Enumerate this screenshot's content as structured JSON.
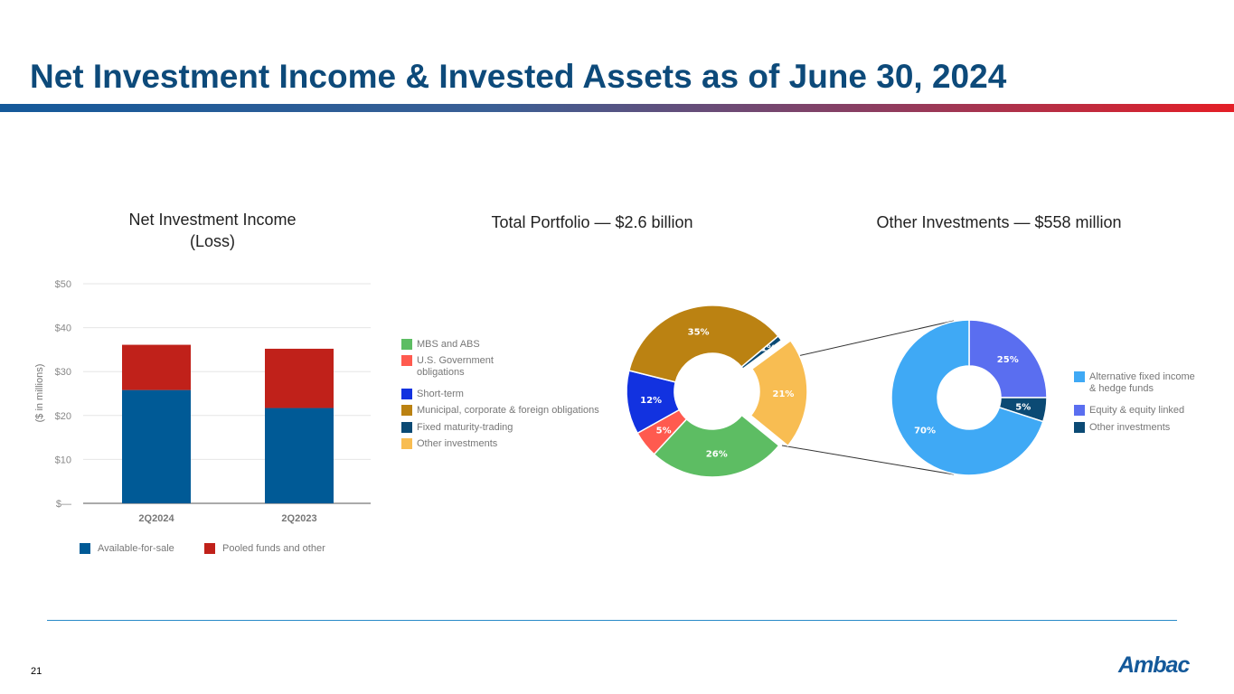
{
  "title": "Net Investment Income & Invested Assets as of June 30, 2024",
  "page_number": "21",
  "logo": "Ambac",
  "colors": {
    "title": "#0d4a7a",
    "afs": "#005a96",
    "pooled": "#c0211a"
  },
  "chart_data": [
    {
      "type": "bar",
      "stacked": true,
      "title": "Net Investment Income (Loss)",
      "title_lines": [
        "Net Investment Income",
        "(Loss)"
      ],
      "ylabel": "($ in millions)",
      "ylim": [
        0,
        50
      ],
      "yticks": [
        "$—",
        "$10",
        "$20",
        "$30",
        "$40",
        "$50"
      ],
      "categories": [
        "2Q2024",
        "2Q2023"
      ],
      "series": [
        {
          "name": "Available-for-sale",
          "color": "#005a96",
          "values": [
            25.8,
            21.7
          ]
        },
        {
          "name": "Pooled funds and other",
          "color": "#c0211a",
          "values": [
            10.3,
            13.5
          ]
        }
      ],
      "legend": "bottom",
      "grid": true
    },
    {
      "type": "pie",
      "donut": true,
      "title": "Total Portfolio — $2.6 billion",
      "slices": [
        {
          "label": "Fixed maturity-trading",
          "value": 1,
          "color": "#0b4a74"
        },
        {
          "label": "Other investments",
          "value": 21,
          "color": "#f8bd52",
          "exploded": true
        },
        {
          "label": "MBS and ABS",
          "value": 26,
          "color": "#5dbd63"
        },
        {
          "label": "U.S. Government obligations",
          "value": 5,
          "color": "#ff5a4f"
        },
        {
          "label": "Short-term",
          "value": 12,
          "color": "#1232e0"
        },
        {
          "label": "Municipal, corporate & foreign obligations",
          "value": 35,
          "color": "#bb8212"
        }
      ],
      "legend_order": [
        "MBS and ABS",
        "U.S. Government obligations",
        "Short-term",
        "Municipal, corporate & foreign obligations",
        "Fixed maturity-trading",
        "Other investments"
      ],
      "legend": "left"
    },
    {
      "type": "pie",
      "donut": true,
      "title": "Other Investments — $558 million",
      "slices": [
        {
          "label": "Equity & equity linked",
          "value": 25,
          "color": "#5a6ef0"
        },
        {
          "label": "Other investments",
          "value": 5,
          "color": "#0b4a74"
        },
        {
          "label": "Alternative fixed income & hedge funds",
          "value": 70,
          "color": "#3fa9f5"
        }
      ],
      "legend_order": [
        "Alternative fixed income & hedge funds",
        "Equity & equity linked",
        "Other investments"
      ],
      "legend": "right"
    }
  ],
  "legend_mid": [
    {
      "lines": [
        "MBS and ABS"
      ],
      "color": "#5dbd63"
    },
    {
      "lines": [
        "U.S. Government",
        "obligations"
      ],
      "color": "#ff5a4f"
    },
    {
      "lines": [
        "Short-term"
      ],
      "color": "#1232e0"
    },
    {
      "lines": [
        "Municipal, corporate & foreign obligations"
      ],
      "color": "#bb8212"
    },
    {
      "lines": [
        "Fixed maturity-trading"
      ],
      "color": "#0b4a74"
    },
    {
      "lines": [
        "Other investments"
      ],
      "color": "#f8bd52"
    }
  ],
  "legend_right": [
    {
      "lines": [
        "Alternative fixed income",
        "& hedge funds"
      ],
      "color": "#3fa9f5"
    },
    {
      "lines": [
        "Equity & equity linked"
      ],
      "color": "#5a6ef0"
    },
    {
      "lines": [
        "Other investments"
      ],
      "color": "#0b4a74"
    }
  ]
}
